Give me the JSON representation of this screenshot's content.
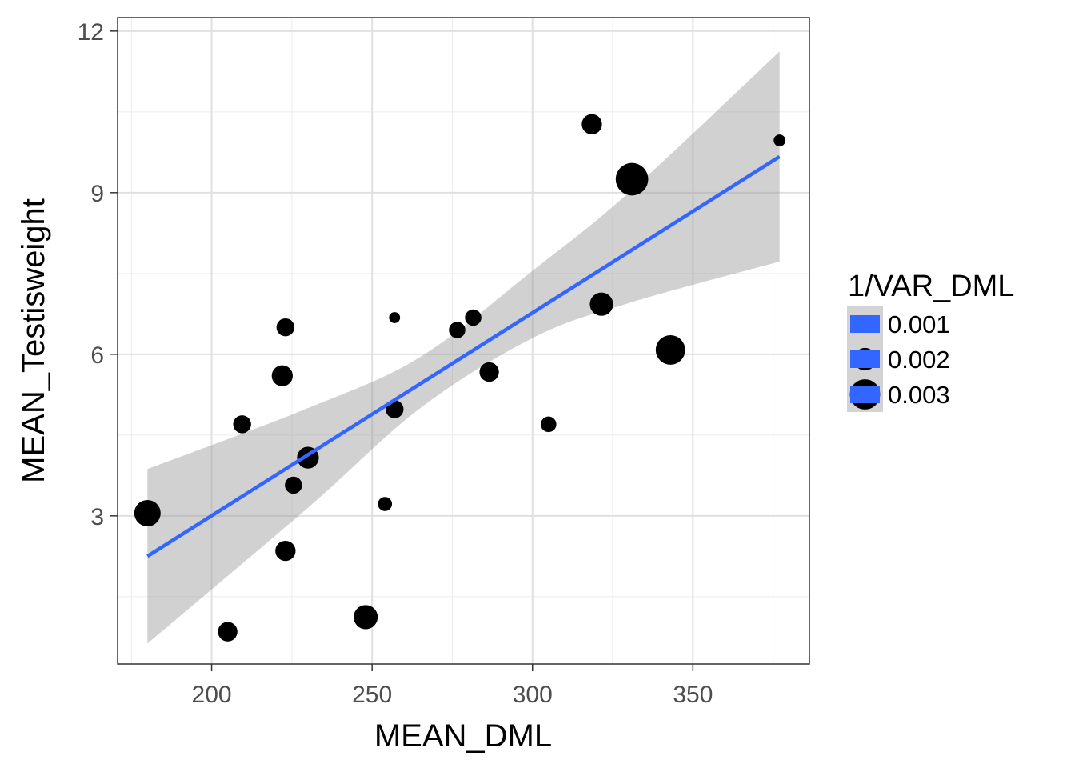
{
  "chart_data": {
    "type": "scatter",
    "xlabel": "MEAN_DML",
    "ylabel": "MEAN_Testisweight",
    "xlim": [
      170.7,
      386.3
    ],
    "ylim": [
      0.25,
      12.25
    ],
    "x_ticks": [
      200,
      250,
      300,
      350
    ],
    "x_tick_labels": [
      "200",
      "250",
      "300",
      "350"
    ],
    "y_ticks": [
      3,
      6,
      9,
      12
    ],
    "y_tick_labels": [
      "3",
      "6",
      "9",
      "12"
    ],
    "grid": true,
    "legend_placement": "right",
    "legend": {
      "title": "1/VAR_DML",
      "entries": [
        {
          "label": "0.001",
          "size_value": 0.001
        },
        {
          "label": "0.002",
          "size_value": 0.002
        },
        {
          "label": "0.003",
          "size_value": 0.003
        }
      ]
    },
    "points": [
      {
        "x": 180,
        "y": 3.05,
        "size": 0.0025
      },
      {
        "x": 205,
        "y": 0.85,
        "size": 0.0016
      },
      {
        "x": 209.5,
        "y": 4.7,
        "size": 0.0014
      },
      {
        "x": 222,
        "y": 5.6,
        "size": 0.0018
      },
      {
        "x": 223,
        "y": 6.5,
        "size": 0.0014
      },
      {
        "x": 223,
        "y": 2.35,
        "size": 0.0017
      },
      {
        "x": 225.5,
        "y": 3.57,
        "size": 0.0013
      },
      {
        "x": 230,
        "y": 4.08,
        "size": 0.0019
      },
      {
        "x": 248,
        "y": 1.12,
        "size": 0.0022
      },
      {
        "x": 254,
        "y": 3.22,
        "size": 0.0009
      },
      {
        "x": 257,
        "y": 6.68,
        "size": 0.0005
      },
      {
        "x": 257,
        "y": 4.98,
        "size": 0.0014
      },
      {
        "x": 276.5,
        "y": 6.45,
        "size": 0.0012
      },
      {
        "x": 281.5,
        "y": 6.68,
        "size": 0.0012
      },
      {
        "x": 286.5,
        "y": 5.67,
        "size": 0.0016
      },
      {
        "x": 305,
        "y": 4.7,
        "size": 0.0011
      },
      {
        "x": 318.5,
        "y": 10.27,
        "size": 0.0017
      },
      {
        "x": 321.5,
        "y": 6.93,
        "size": 0.0021
      },
      {
        "x": 331,
        "y": 9.25,
        "size": 0.0033
      },
      {
        "x": 343,
        "y": 6.08,
        "size": 0.0029
      },
      {
        "x": 377,
        "y": 9.97,
        "size": 0.0006
      }
    ],
    "fit": {
      "method": "linear regression",
      "x": [
        180,
        377
      ],
      "y": [
        2.25,
        9.67
      ],
      "color": "#3366ff"
    },
    "confidence_band": {
      "x": [
        180,
        230,
        265,
        300,
        330,
        377
      ],
      "lower": [
        0.63,
        3.15,
        5.0,
        6.3,
        6.95,
        7.72
      ],
      "upper": [
        3.87,
        5.0,
        5.95,
        7.55,
        9.0,
        11.62
      ],
      "color": "#999999"
    },
    "point_color": "#000000"
  }
}
